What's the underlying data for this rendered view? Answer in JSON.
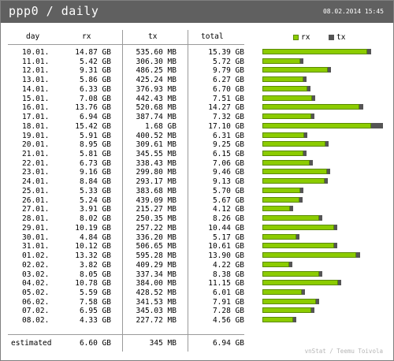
{
  "header": {
    "title": "ppp0 / daily",
    "timestamp": "08.02.2014 15:45"
  },
  "columns": {
    "day": "day",
    "rx": "rx",
    "tx": "tx",
    "total": "total"
  },
  "legend": {
    "rx": "rx",
    "tx": "tx",
    "rx_color": "#8ccc00",
    "tx_color": "#555555"
  },
  "rows": [
    {
      "day": "10.01.",
      "rx": "14.87 GB",
      "tx": "535.60 MB",
      "total": "15.39 GB",
      "rx_gb": 14.87,
      "tx_gb": 0.52
    },
    {
      "day": "11.01.",
      "rx": "5.42 GB",
      "tx": "306.30 MB",
      "total": "5.72 GB",
      "rx_gb": 5.42,
      "tx_gb": 0.3
    },
    {
      "day": "12.01.",
      "rx": "9.31 GB",
      "tx": "486.25 MB",
      "total": "9.79 GB",
      "rx_gb": 9.31,
      "tx_gb": 0.47
    },
    {
      "day": "13.01.",
      "rx": "5.86 GB",
      "tx": "425.24 MB",
      "total": "6.27 GB",
      "rx_gb": 5.86,
      "tx_gb": 0.42
    },
    {
      "day": "14.01.",
      "rx": "6.33 GB",
      "tx": "376.93 MB",
      "total": "6.70 GB",
      "rx_gb": 6.33,
      "tx_gb": 0.37
    },
    {
      "day": "15.01.",
      "rx": "7.08 GB",
      "tx": "442.43 MB",
      "total": "7.51 GB",
      "rx_gb": 7.08,
      "tx_gb": 0.43
    },
    {
      "day": "16.01.",
      "rx": "13.76 GB",
      "tx": "520.68 MB",
      "total": "14.27 GB",
      "rx_gb": 13.76,
      "tx_gb": 0.51
    },
    {
      "day": "17.01.",
      "rx": "6.94 GB",
      "tx": "387.74 MB",
      "total": "7.32 GB",
      "rx_gb": 6.94,
      "tx_gb": 0.38
    },
    {
      "day": "18.01.",
      "rx": "15.42 GB",
      "tx": "1.68 GB",
      "total": "17.10 GB",
      "rx_gb": 15.42,
      "tx_gb": 1.68
    },
    {
      "day": "19.01.",
      "rx": "5.91 GB",
      "tx": "400.52 MB",
      "total": "6.31 GB",
      "rx_gb": 5.91,
      "tx_gb": 0.39
    },
    {
      "day": "20.01.",
      "rx": "8.95 GB",
      "tx": "309.61 MB",
      "total": "9.25 GB",
      "rx_gb": 8.95,
      "tx_gb": 0.3
    },
    {
      "day": "21.01.",
      "rx": "5.81 GB",
      "tx": "345.55 MB",
      "total": "6.15 GB",
      "rx_gb": 5.81,
      "tx_gb": 0.34
    },
    {
      "day": "22.01.",
      "rx": "6.73 GB",
      "tx": "338.43 MB",
      "total": "7.06 GB",
      "rx_gb": 6.73,
      "tx_gb": 0.33
    },
    {
      "day": "23.01.",
      "rx": "9.16 GB",
      "tx": "299.80 MB",
      "total": "9.46 GB",
      "rx_gb": 9.16,
      "tx_gb": 0.29
    },
    {
      "day": "24.01.",
      "rx": "8.84 GB",
      "tx": "293.17 MB",
      "total": "9.13 GB",
      "rx_gb": 8.84,
      "tx_gb": 0.29
    },
    {
      "day": "25.01.",
      "rx": "5.33 GB",
      "tx": "383.68 MB",
      "total": "5.70 GB",
      "rx_gb": 5.33,
      "tx_gb": 0.37
    },
    {
      "day": "26.01.",
      "rx": "5.24 GB",
      "tx": "439.09 MB",
      "total": "5.67 GB",
      "rx_gb": 5.24,
      "tx_gb": 0.43
    },
    {
      "day": "27.01.",
      "rx": "3.91 GB",
      "tx": "215.27 MB",
      "total": "4.12 GB",
      "rx_gb": 3.91,
      "tx_gb": 0.21
    },
    {
      "day": "28.01.",
      "rx": "8.02 GB",
      "tx": "250.35 MB",
      "total": "8.26 GB",
      "rx_gb": 8.02,
      "tx_gb": 0.24
    },
    {
      "day": "29.01.",
      "rx": "10.19 GB",
      "tx": "257.22 MB",
      "total": "10.44 GB",
      "rx_gb": 10.19,
      "tx_gb": 0.25
    },
    {
      "day": "30.01.",
      "rx": "4.84 GB",
      "tx": "336.20 MB",
      "total": "5.17 GB",
      "rx_gb": 4.84,
      "tx_gb": 0.33
    },
    {
      "day": "31.01.",
      "rx": "10.12 GB",
      "tx": "506.65 MB",
      "total": "10.61 GB",
      "rx_gb": 10.12,
      "tx_gb": 0.49
    },
    {
      "day": "01.02.",
      "rx": "13.32 GB",
      "tx": "595.28 MB",
      "total": "13.90 GB",
      "rx_gb": 13.32,
      "tx_gb": 0.58
    },
    {
      "day": "02.02.",
      "rx": "3.82 GB",
      "tx": "409.29 MB",
      "total": "4.22 GB",
      "rx_gb": 3.82,
      "tx_gb": 0.4
    },
    {
      "day": "03.02.",
      "rx": "8.05 GB",
      "tx": "337.34 MB",
      "total": "8.38 GB",
      "rx_gb": 8.05,
      "tx_gb": 0.33
    },
    {
      "day": "04.02.",
      "rx": "10.78 GB",
      "tx": "384.00 MB",
      "total": "11.15 GB",
      "rx_gb": 10.78,
      "tx_gb": 0.37
    },
    {
      "day": "05.02.",
      "rx": "5.59 GB",
      "tx": "428.52 MB",
      "total": "6.01 GB",
      "rx_gb": 5.59,
      "tx_gb": 0.42
    },
    {
      "day": "06.02.",
      "rx": "7.58 GB",
      "tx": "341.53 MB",
      "total": "7.91 GB",
      "rx_gb": 7.58,
      "tx_gb": 0.33
    },
    {
      "day": "07.02.",
      "rx": "6.95 GB",
      "tx": "345.03 MB",
      "total": "7.28 GB",
      "rx_gb": 6.95,
      "tx_gb": 0.34
    },
    {
      "day": "08.02.",
      "rx": "4.33 GB",
      "tx": "227.72 MB",
      "total": "4.56 GB",
      "rx_gb": 4.33,
      "tx_gb": 0.22
    }
  ],
  "estimated": {
    "label": "estimated",
    "rx": "6.60 GB",
    "tx": "345 MB",
    "total": "6.94 GB"
  },
  "credit": "vnStat / Teemu Toivola"
}
